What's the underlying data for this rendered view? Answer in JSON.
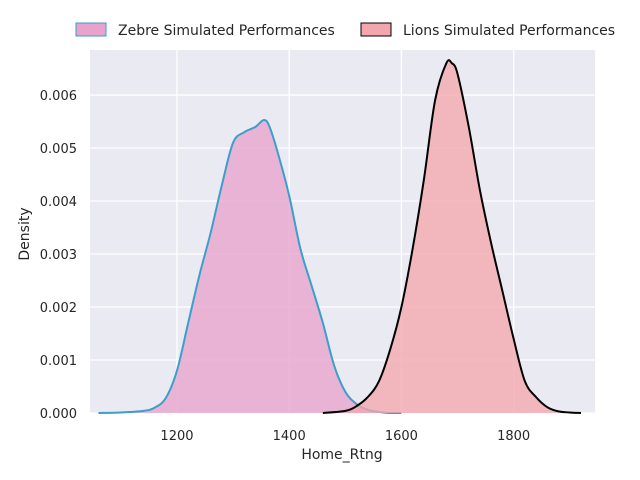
{
  "chart_data": {
    "type": "area",
    "title": "",
    "xlabel": "Home_Rtng",
    "ylabel": "Density",
    "xlim": [
      1045,
      1945
    ],
    "ylim": [
      0,
      0.00685
    ],
    "xticks": [
      1200,
      1400,
      1600,
      1800
    ],
    "xtick_labels": [
      "1200",
      "1400",
      "1600",
      "1800"
    ],
    "yticks": [
      0.0,
      0.001,
      0.002,
      0.003,
      0.004,
      0.005,
      0.006
    ],
    "ytick_labels": [
      "0.000",
      "0.001",
      "0.002",
      "0.003",
      "0.004",
      "0.005",
      "0.006"
    ],
    "grid": true,
    "legend_position": "top-center",
    "background_color": "#eaeaf2",
    "series": [
      {
        "name": "Zebre Simulated Performances",
        "fill_color": "#e7a3cc",
        "line_color": "#3a9fcc",
        "x": [
          1060,
          1100,
          1140,
          1160,
          1180,
          1200,
          1220,
          1240,
          1260,
          1280,
          1300,
          1320,
          1340,
          1355,
          1365,
          1380,
          1400,
          1420,
          1440,
          1460,
          1480,
          1500,
          1520,
          1540,
          1560,
          1580,
          1600
        ],
        "y": [
          0.0,
          1e-05,
          4e-05,
          0.0001,
          0.00028,
          0.0008,
          0.0017,
          0.0026,
          0.0034,
          0.0043,
          0.0051,
          0.0053,
          0.0054,
          0.00553,
          0.0054,
          0.0049,
          0.0041,
          0.0031,
          0.0024,
          0.0017,
          0.0009,
          0.0004,
          0.00017,
          6e-05,
          2e-05,
          0.0,
          0.0
        ]
      },
      {
        "name": "Lions Simulated Performances",
        "fill_color": "#f4a6ae",
        "line_color": "#000000",
        "x": [
          1460,
          1500,
          1520,
          1540,
          1560,
          1580,
          1600,
          1620,
          1640,
          1660,
          1680,
          1690,
          1700,
          1720,
          1740,
          1760,
          1780,
          1800,
          1820,
          1840,
          1860,
          1880,
          1900,
          1920
        ],
        "y": [
          0.0,
          4e-05,
          0.00013,
          0.0003,
          0.0006,
          0.0012,
          0.002,
          0.0031,
          0.0044,
          0.0059,
          0.0066,
          0.0066,
          0.0064,
          0.0054,
          0.0042,
          0.0032,
          0.0023,
          0.0014,
          0.0006,
          0.0003,
          0.00011,
          3e-05,
          1e-05,
          0.0
        ]
      }
    ]
  }
}
